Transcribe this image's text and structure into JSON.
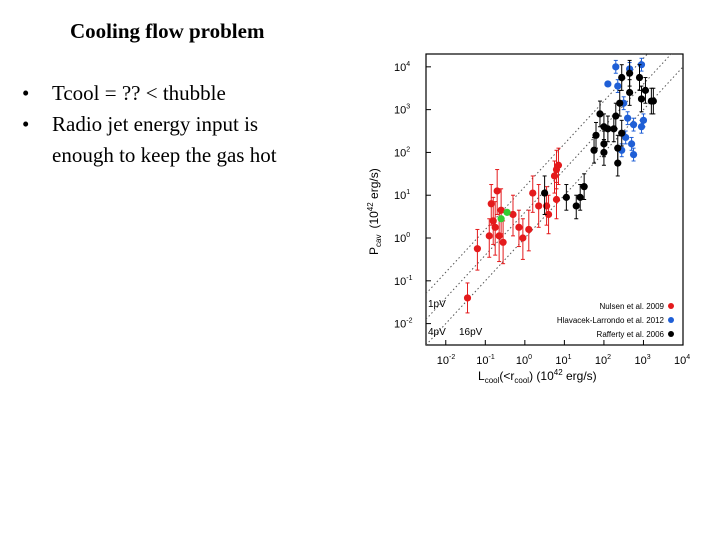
{
  "slide": {
    "title": "Cooling flow problem",
    "bullet_glyph": "•",
    "bullets": [
      "Tcool = ?? < thubble",
      "Radio jet energy input is enough to keep the gas hot"
    ]
  },
  "chart_data": {
    "type": "scatter",
    "xlabel_main": "L",
    "xlabel_sub": "cool",
    "xlabel_paren": "(<r",
    "xlabel_paren_sub": "cool",
    "xlabel_units_a": ") (10",
    "xlabel_units_exp": "42",
    "xlabel_units_b": " erg/s)",
    "ylabel_main": "P",
    "ylabel_sub": "cav",
    "ylabel_units_a": "(10",
    "ylabel_units_exp": "42",
    "ylabel_units_b": " erg/s)",
    "log_scale": true,
    "xlim_log": [
      -2.5,
      4
    ],
    "ylim_log": [
      -2.5,
      4.3
    ],
    "x_ticks": [
      {
        "exp": -2,
        "base": "10",
        "exp_label": "-2"
      },
      {
        "exp": -1,
        "base": "10",
        "exp_label": "-1"
      },
      {
        "exp": 0,
        "base": "10",
        "exp_label": "0"
      },
      {
        "exp": 1,
        "base": "10",
        "exp_label": "1"
      },
      {
        "exp": 2,
        "base": "10",
        "exp_label": "2"
      },
      {
        "exp": 3,
        "base": "10",
        "exp_label": "3"
      },
      {
        "exp": 4,
        "base": "10",
        "exp_label": "4"
      }
    ],
    "y_ticks": [
      {
        "exp": -2,
        "base": "10",
        "exp_label": "-2"
      },
      {
        "exp": -1,
        "base": "10",
        "exp_label": "-1"
      },
      {
        "exp": 0,
        "base": "10",
        "exp_label": "0"
      },
      {
        "exp": 1,
        "base": "10",
        "exp_label": "1"
      },
      {
        "exp": 2,
        "base": "10",
        "exp_label": "2"
      },
      {
        "exp": 3,
        "base": "10",
        "exp_label": "3"
      },
      {
        "exp": 4,
        "base": "10",
        "exp_label": "4"
      }
    ],
    "ref_lines": [
      {
        "label": "1pV",
        "offset": 0
      },
      {
        "label": "4pV",
        "offset": 0.6
      },
      {
        "label": "16pV",
        "offset": 1.2
      }
    ],
    "legend_position": "bottom-right",
    "series": [
      {
        "name": "Nulsen et al. 2009",
        "color": "#e41a1c",
        "points": [
          [
            -1.45,
            -1.4,
            0.35,
            0.35
          ],
          [
            -1.2,
            -0.25,
            0.5,
            0.45
          ],
          [
            -0.9,
            0.05,
            0.5,
            0.4
          ],
          [
            -0.85,
            0.8,
            0.5,
            0.45
          ],
          [
            -0.8,
            0.4,
            0.55,
            0.55
          ],
          [
            -0.75,
            0.25,
            0.65,
            0.6
          ],
          [
            -0.7,
            1.1,
            0.55,
            0.5
          ],
          [
            -0.6,
            0.65,
            0.55,
            0.5
          ],
          [
            -0.55,
            -0.1,
            0.5,
            0.5
          ],
          [
            -0.65,
            0.05,
            0.6,
            0.6
          ],
          [
            -0.3,
            0.55,
            0.5,
            0.45
          ],
          [
            -0.15,
            0.25,
            0.45,
            0.4
          ],
          [
            -0.05,
            0.0,
            0.5,
            0.45
          ],
          [
            0.1,
            0.2,
            0.5,
            0.45
          ],
          [
            0.2,
            1.05,
            0.45,
            0.4
          ],
          [
            0.35,
            0.75,
            0.5,
            0.5
          ],
          [
            0.55,
            0.75,
            0.45,
            0.45
          ],
          [
            0.6,
            0.55,
            0.45,
            0.45
          ],
          [
            0.75,
            1.45,
            0.4,
            0.35
          ],
          [
            0.85,
            1.7,
            0.45,
            0.4
          ],
          [
            0.8,
            1.6,
            0.45,
            0.45
          ],
          [
            0.8,
            0.9,
            0.45,
            0.4
          ]
        ]
      },
      {
        "name": "Hlavacek-Larrondo et al. 2012",
        "color": "#1f5fd6",
        "points": [
          [
            2.1,
            3.6,
            0,
            0
          ],
          [
            2.3,
            4.0,
            0.15,
            0.15
          ],
          [
            2.35,
            3.55,
            0.15,
            0.15
          ],
          [
            2.65,
            3.95,
            0.15,
            0.15
          ],
          [
            2.95,
            4.05,
            0.15,
            0.15
          ],
          [
            2.5,
            3.15,
            0.15,
            0.15
          ],
          [
            2.6,
            2.8,
            0.15,
            0.15
          ],
          [
            2.75,
            2.65,
            0.15,
            0.15
          ],
          [
            2.95,
            2.6,
            0.15,
            0.15
          ],
          [
            3.0,
            2.75,
            0.15,
            0.15
          ],
          [
            2.55,
            2.35,
            0.15,
            0.15
          ],
          [
            2.7,
            2.2,
            0.15,
            0.15
          ],
          [
            2.75,
            1.95,
            0.15,
            0.15
          ],
          [
            2.45,
            2.05,
            0.15,
            0.15
          ]
        ]
      },
      {
        "name": "Rafferty et al. 2006",
        "color": "#000000",
        "points": [
          [
            0.5,
            1.05,
            0.5,
            0.4
          ],
          [
            1.05,
            0.95,
            0.3,
            0.3
          ],
          [
            1.3,
            0.75,
            0.3,
            0.25
          ],
          [
            1.5,
            1.2,
            0.3,
            0.3
          ],
          [
            1.4,
            0.95,
            0.3,
            0.3
          ],
          [
            1.75,
            2.05,
            0.3,
            0.3
          ],
          [
            1.8,
            2.4,
            0.3,
            0.3
          ],
          [
            1.9,
            2.9,
            0.3,
            0.3
          ],
          [
            2.0,
            2.6,
            0.3,
            0.3
          ],
          [
            2.1,
            2.55,
            0.3,
            0.3
          ],
          [
            2.0,
            2.2,
            0.3,
            0.3
          ],
          [
            2.25,
            2.55,
            0.3,
            0.3
          ],
          [
            2.3,
            2.85,
            0.3,
            0.3
          ],
          [
            2.4,
            3.15,
            0.3,
            0.3
          ],
          [
            2.45,
            3.75,
            0.3,
            0.3
          ],
          [
            2.65,
            3.85,
            0.3,
            0.3
          ],
          [
            2.9,
            3.75,
            0.3,
            0.3
          ],
          [
            3.05,
            3.45,
            0.3,
            0.3
          ],
          [
            3.2,
            3.2,
            0.3,
            0.3
          ],
          [
            3.25,
            3.2,
            0.3,
            0.3
          ],
          [
            2.95,
            3.25,
            0.3,
            0.3
          ],
          [
            2.65,
            3.4,
            0.3,
            0.3
          ],
          [
            2.35,
            2.1,
            0.3,
            0.3
          ],
          [
            2.45,
            2.45,
            0.3,
            0.3
          ],
          [
            2.35,
            1.75,
            0.3,
            0.3
          ],
          [
            2.0,
            2.0,
            0.3,
            0.3
          ]
        ]
      },
      {
        "name": "",
        "color": "#33cc33",
        "points": [
          [
            -0.45,
            0.6,
            0,
            0
          ],
          [
            -0.6,
            0.45,
            0,
            0
          ]
        ]
      }
    ]
  }
}
